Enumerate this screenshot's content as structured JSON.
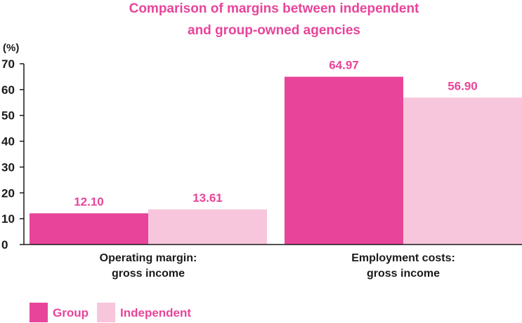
{
  "chart_data": {
    "type": "bar",
    "title_lines": [
      "Comparison of margins between independent",
      "and group-owned agencies"
    ],
    "ylabel": "(%)",
    "ylim": [
      0,
      70
    ],
    "yticks": [
      0,
      10,
      20,
      30,
      40,
      50,
      60,
      70
    ],
    "categories": [
      [
        "Operating margin:",
        "gross income"
      ],
      [
        "Employment costs:",
        "gross income"
      ]
    ],
    "series": [
      {
        "name": "Group",
        "values": [
          12.1,
          64.97
        ],
        "labels": [
          "12.10",
          "64.97"
        ],
        "color": "#e8449a"
      },
      {
        "name": "Independent",
        "values": [
          13.61,
          56.9
        ],
        "labels": [
          "13.61",
          "56.90"
        ],
        "color": "#f7c6dc"
      }
    ],
    "grid": false,
    "legend_position": "bottom-left"
  }
}
